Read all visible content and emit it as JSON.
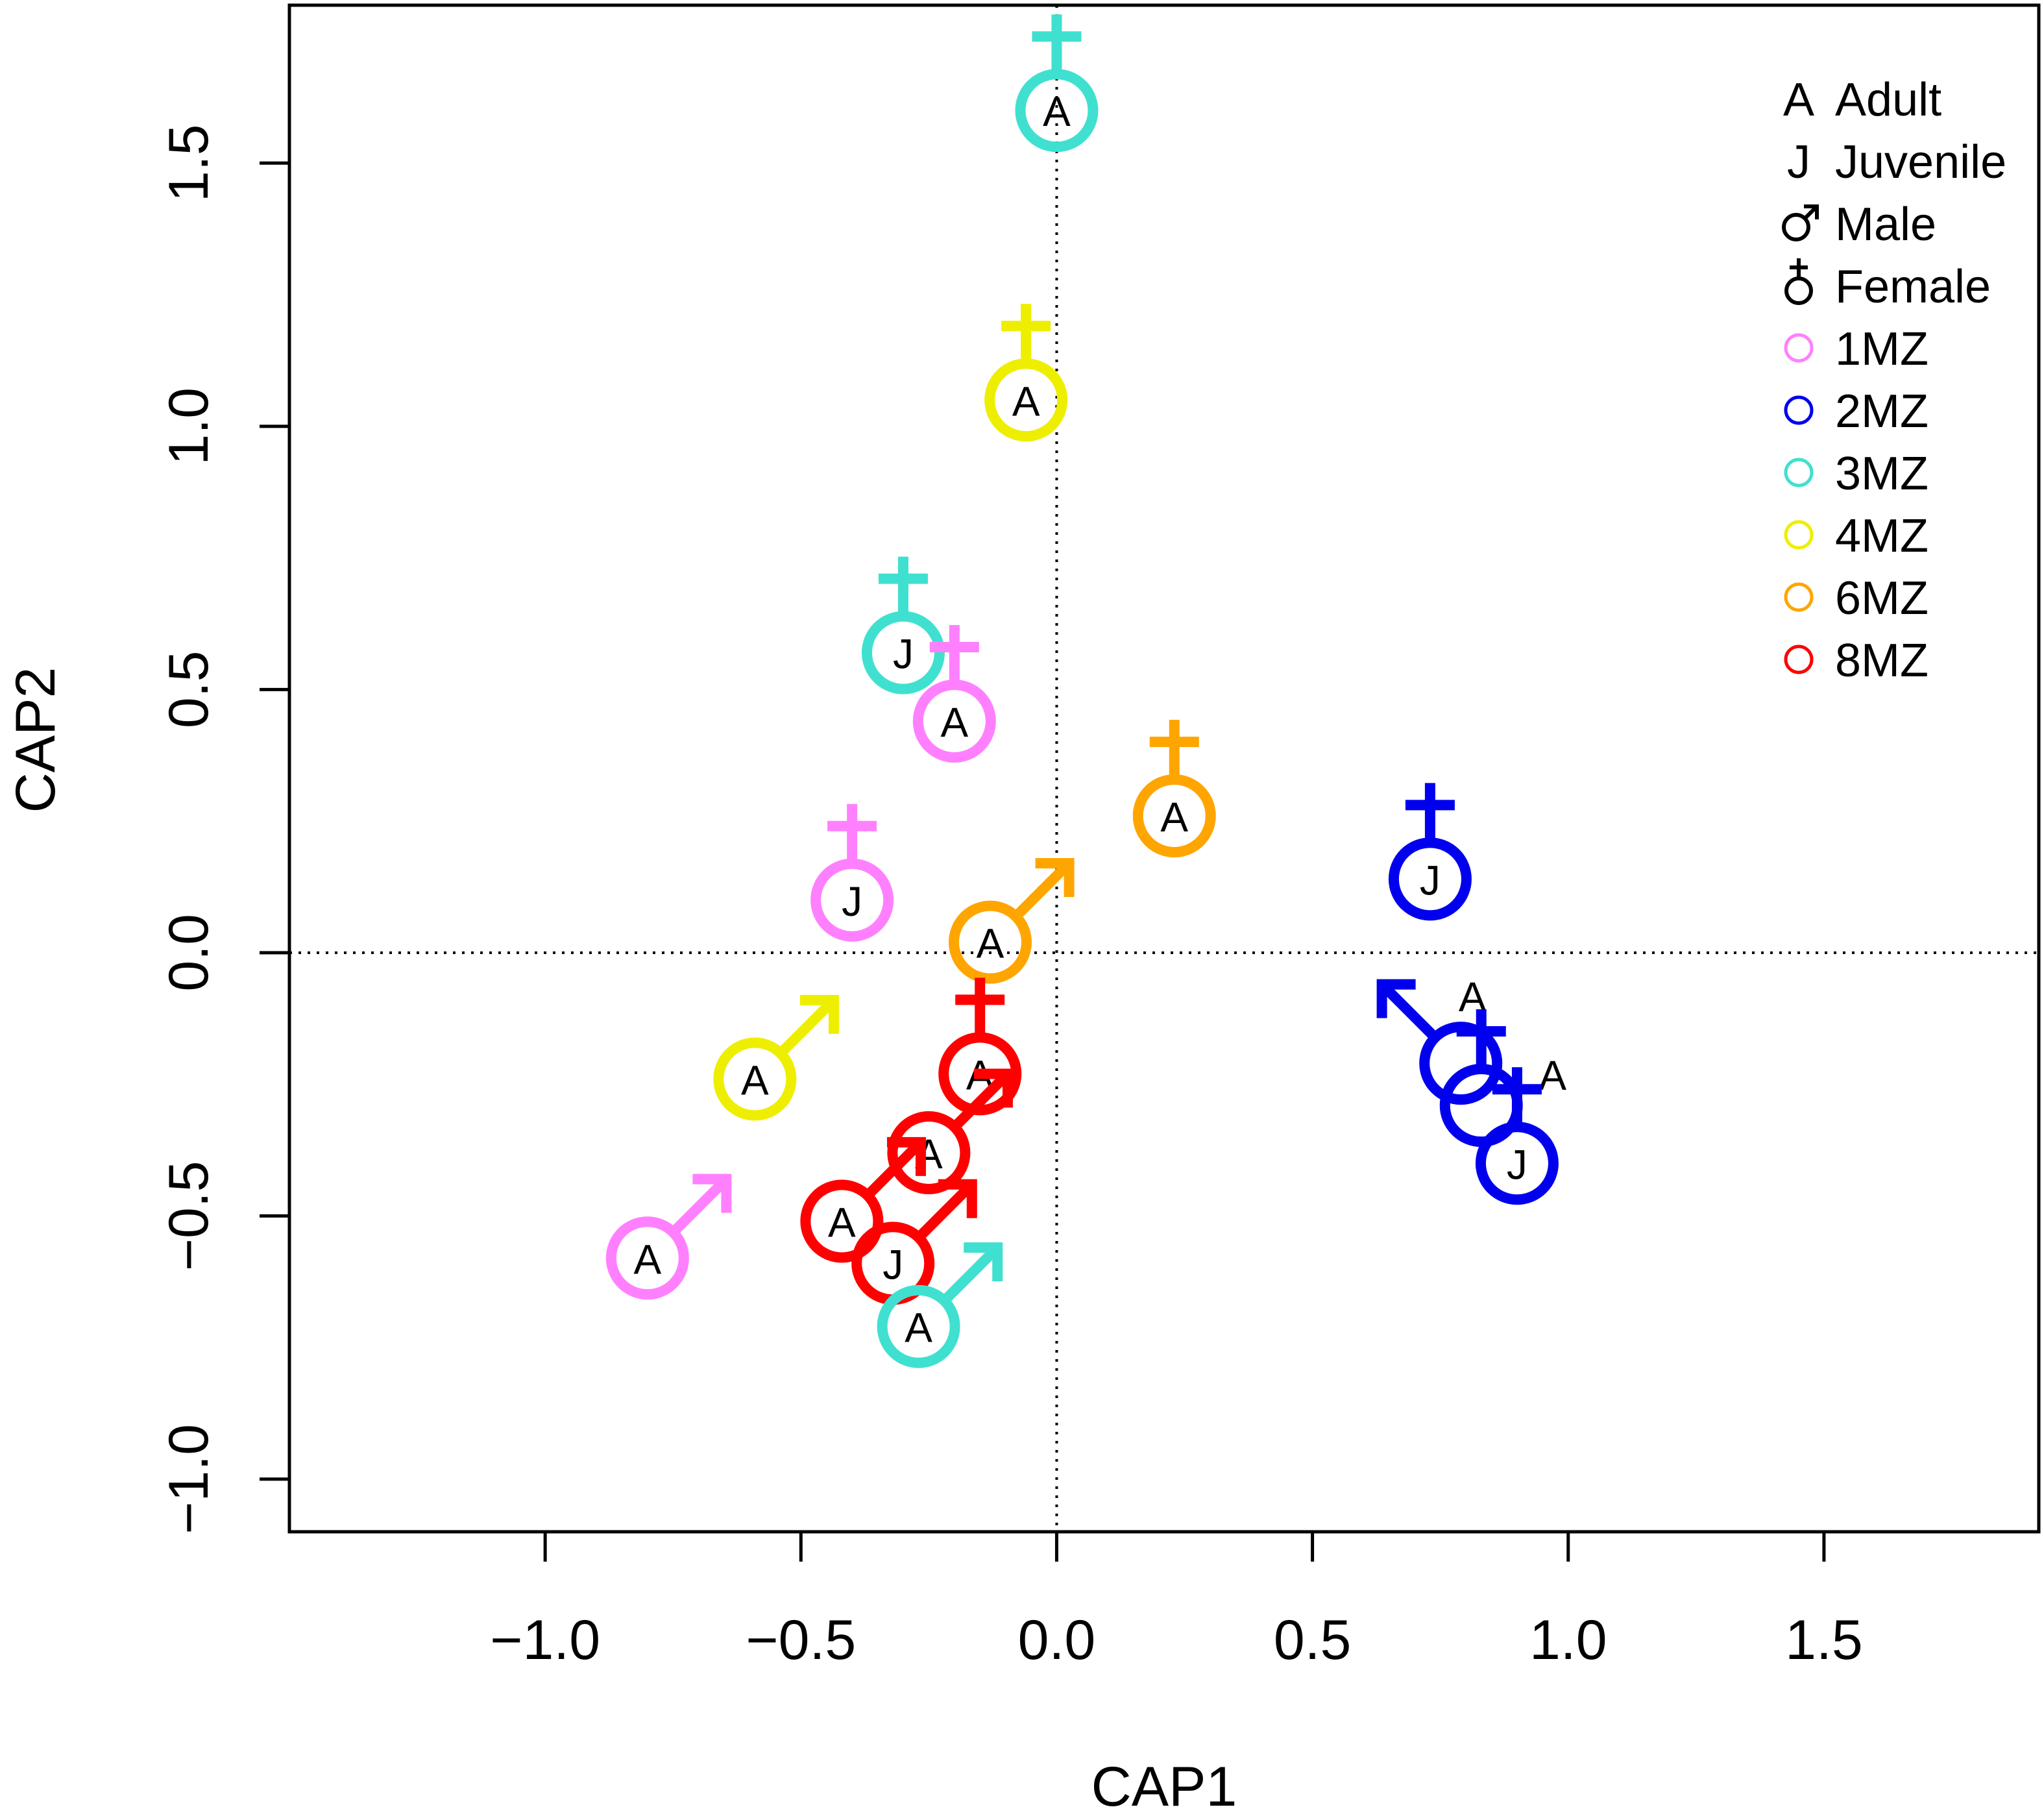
{
  "chart_data": {
    "type": "scatter",
    "title": "",
    "xlabel": "CAP1",
    "ylabel": "CAP2",
    "xlim": [
      -1.5,
      1.92
    ],
    "ylim": [
      -1.1,
      1.8
    ],
    "x_ticks": [
      -1.0,
      -0.5,
      0.0,
      0.5,
      1.0,
      1.5
    ],
    "y_ticks": [
      -1.0,
      -0.5,
      0.0,
      0.5,
      1.0,
      1.5
    ],
    "x_tick_labels": [
      "−1.0",
      "−0.5",
      "0.0",
      "0.5",
      "1.0",
      "1.5"
    ],
    "y_tick_labels": [
      "−1.0",
      "−0.5",
      "0.0",
      "0.5",
      "1.0",
      "1.5"
    ],
    "reference_lines": {
      "x": 0.0,
      "y": 0.0,
      "style": "dotted"
    },
    "legend": {
      "placement": "top-right",
      "entries": [
        {
          "symbol": "A",
          "label": "Adult",
          "kind": "letter"
        },
        {
          "symbol": "J",
          "label": "Juvenile",
          "kind": "letter"
        },
        {
          "symbol": "♂",
          "label": "Male",
          "kind": "male"
        },
        {
          "symbol": "♀",
          "label": "Female",
          "kind": "female"
        },
        {
          "label": "1MZ",
          "kind": "color",
          "color": "#ff80ff"
        },
        {
          "label": "2MZ",
          "kind": "color",
          "color": "#0000ee"
        },
        {
          "label": "3MZ",
          "kind": "color",
          "color": "#40e0d0"
        },
        {
          "label": "4MZ",
          "kind": "color",
          "color": "#eeee00"
        },
        {
          "label": "6MZ",
          "kind": "color",
          "color": "#ffa500"
        },
        {
          "label": "8MZ",
          "kind": "color",
          "color": "#ff0000"
        }
      ]
    },
    "group_colors": {
      "1MZ": "#ff80ff",
      "2MZ": "#0000ee",
      "3MZ": "#40e0d0",
      "4MZ": "#eeee00",
      "6MZ": "#ffa500",
      "8MZ": "#ff0000"
    },
    "points": [
      {
        "x": 0.0,
        "y": 1.6,
        "group": "3MZ",
        "sex": "female",
        "age": "A"
      },
      {
        "x": -0.06,
        "y": 1.05,
        "group": "4MZ",
        "sex": "female",
        "age": "A"
      },
      {
        "x": -0.3,
        "y": 0.57,
        "group": "3MZ",
        "sex": "female",
        "age": "J"
      },
      {
        "x": -0.2,
        "y": 0.44,
        "group": "1MZ",
        "sex": "female",
        "age": "A"
      },
      {
        "x": -0.4,
        "y": 0.1,
        "group": "1MZ",
        "sex": "female",
        "age": "J"
      },
      {
        "x": 0.23,
        "y": 0.26,
        "group": "6MZ",
        "sex": "female",
        "age": "A"
      },
      {
        "x": 0.73,
        "y": 0.14,
        "group": "2MZ",
        "sex": "female",
        "age": "J"
      },
      {
        "x": -0.13,
        "y": 0.02,
        "group": "6MZ",
        "sex": "male",
        "age": "A"
      },
      {
        "x": -0.59,
        "y": -0.24,
        "group": "4MZ",
        "sex": "male",
        "age": "A"
      },
      {
        "x": -0.15,
        "y": -0.23,
        "group": "8MZ",
        "sex": "female",
        "age": "A"
      },
      {
        "x": -0.25,
        "y": -0.38,
        "group": "8MZ",
        "sex": "male",
        "age": "A"
      },
      {
        "x": -0.42,
        "y": -0.51,
        "group": "8MZ",
        "sex": "male",
        "age": "A"
      },
      {
        "x": -0.32,
        "y": -0.59,
        "group": "8MZ",
        "sex": "male",
        "age": "J"
      },
      {
        "x": -0.8,
        "y": -0.58,
        "group": "1MZ",
        "sex": "male",
        "age": "A"
      },
      {
        "x": -0.27,
        "y": -0.71,
        "group": "3MZ",
        "sex": "male",
        "age": "A"
      },
      {
        "x": 0.79,
        "y": -0.21,
        "group": "2MZ",
        "sex": "male",
        "age": "A",
        "label_pos": "up-right"
      },
      {
        "x": 0.83,
        "y": -0.29,
        "group": "2MZ",
        "sex": "female",
        "age": "A",
        "label_pos": "right"
      },
      {
        "x": 0.9,
        "y": -0.4,
        "group": "2MZ",
        "sex": "female",
        "age": "J"
      }
    ]
  }
}
